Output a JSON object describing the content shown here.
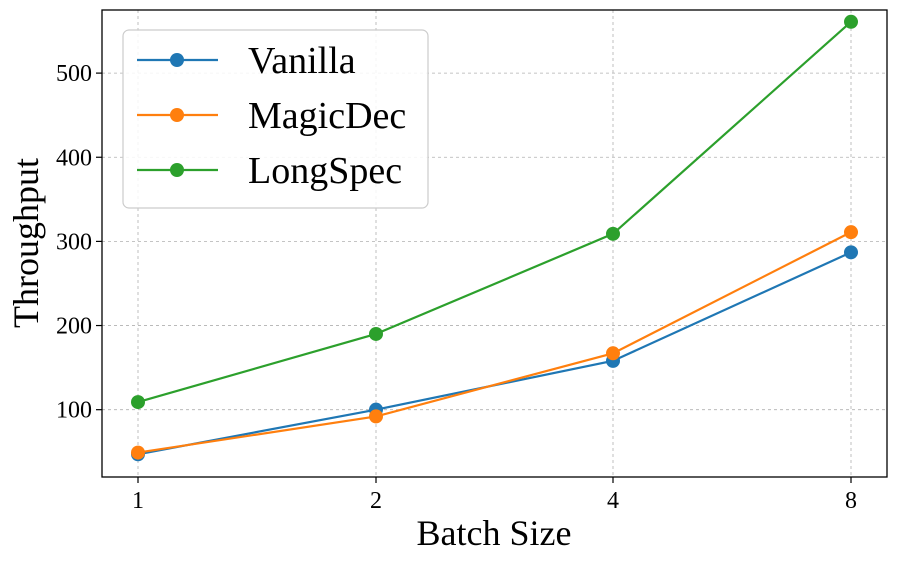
{
  "chart_data": {
    "type": "line",
    "title": "",
    "xlabel": "Batch Size",
    "ylabel": "Throughput",
    "categories": [
      "1",
      "2",
      "4",
      "8"
    ],
    "ylim": [
      20,
      575
    ],
    "yticks": [
      100,
      200,
      300,
      400,
      500
    ],
    "grid": true,
    "legend_position": "top-left",
    "series": [
      {
        "name": "Vanilla",
        "color": "#1f77b4",
        "values": [
          47,
          100,
          158,
          287
        ]
      },
      {
        "name": "MagicDec",
        "color": "#ff7f0e",
        "values": [
          49,
          92,
          167,
          311
        ]
      },
      {
        "name": "LongSpec",
        "color": "#2ca02c",
        "values": [
          109,
          190,
          309,
          561
        ]
      }
    ]
  }
}
